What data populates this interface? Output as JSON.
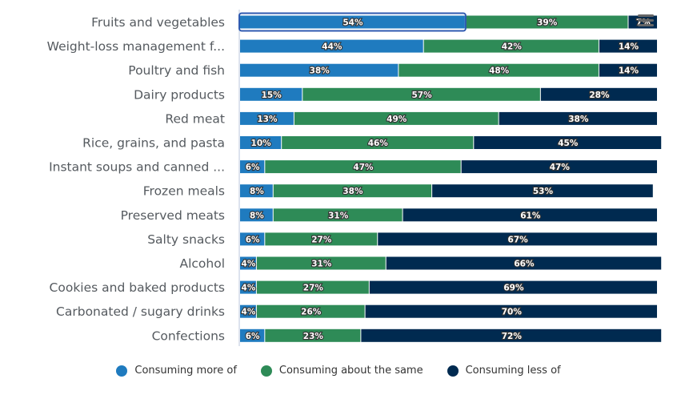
{
  "chart_data": {
    "type": "bar",
    "orientation": "horizontal",
    "stacked": "percent",
    "title": "",
    "xlabel": "",
    "ylabel": "",
    "xlim": [
      0,
      100
    ],
    "grid": false,
    "legend_position": "bottom",
    "categories": [
      "Fruits and vegetables",
      "Weight-loss management f...",
      "Poultry and fish",
      "Dairy products",
      "Red meat",
      "Rice, grains, and pasta",
      "Instant soups and canned ...",
      "Frozen meals",
      "Preserved meats",
      "Salty snacks",
      "Alcohol",
      "Cookies and baked products",
      "Carbonated / sugary drinks",
      "Confections"
    ],
    "series": [
      {
        "name": "Consuming more of",
        "color": "#1f7bbf",
        "values": [
          54,
          44,
          38,
          15,
          13,
          10,
          6,
          8,
          8,
          6,
          4,
          4,
          4,
          6
        ]
      },
      {
        "name": "Consuming about the same",
        "color": "#2e8b57",
        "values": [
          39,
          42,
          48,
          57,
          49,
          46,
          47,
          38,
          31,
          27,
          31,
          27,
          26,
          23
        ]
      },
      {
        "name": "Consuming less of",
        "color": "#002a50",
        "values": [
          7,
          14,
          14,
          28,
          38,
          45,
          47,
          53,
          61,
          67,
          66,
          69,
          70,
          72
        ]
      }
    ],
    "value_suffix": "%",
    "highlighted": {
      "category_index": 0,
      "series_index": 0
    }
  },
  "toolbar": {
    "menu_icon": "hamburger-menu-icon"
  }
}
